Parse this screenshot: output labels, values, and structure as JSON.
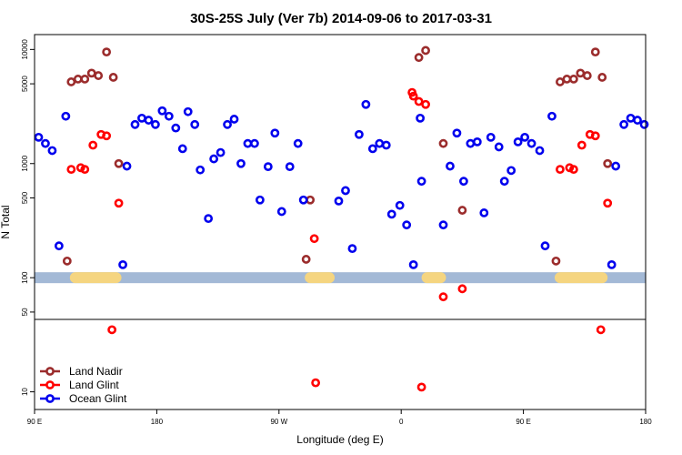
{
  "chart_data": {
    "type": "scatter",
    "title": "30S-25S July (Ver 7b)   2014-09-06 to 2017-03-31",
    "xlabel": "Longitude (deg E)",
    "ylabel": "N Total",
    "x_ticks": [
      {
        "value": 0,
        "label": "90 E"
      },
      {
        "value": 90,
        "label": "180"
      },
      {
        "value": 180,
        "label": "90 W"
      },
      {
        "value": 270,
        "label": "0"
      },
      {
        "value": 360,
        "label": "90 E"
      },
      {
        "value": 450,
        "label": "180"
      }
    ],
    "xlim": [
      0,
      450
    ],
    "y_scale": "log",
    "y_ticks": [
      {
        "value": 10,
        "label": "10"
      },
      {
        "value": 50,
        "label": "50"
      },
      {
        "value": 100,
        "label": "100"
      },
      {
        "value": 500,
        "label": "500"
      },
      {
        "value": 1000,
        "label": "1000"
      },
      {
        "value": 5000,
        "label": "5000"
      },
      {
        "value": 10000,
        "label": "10000"
      }
    ],
    "ylim": [
      7,
      13500
    ],
    "grid": false,
    "legend_position": "bottom-left",
    "reference_band": {
      "value": 100,
      "color": "#a3b9d6"
    },
    "land_segments": [
      {
        "x": [
          26,
          64
        ],
        "color": "#f5d580"
      },
      {
        "x": [
          199,
          221
        ],
        "color": "#f5d580"
      },
      {
        "x": [
          285,
          303
        ],
        "color": "#f5d580"
      },
      {
        "x": [
          383,
          422
        ],
        "color": "#f5d580"
      }
    ],
    "series": [
      {
        "name": "Land Nadir",
        "color": "#9b2c2c",
        "points": [
          [
            24,
            140
          ],
          [
            27,
            5200
          ],
          [
            32,
            5500
          ],
          [
            37,
            5500
          ],
          [
            42,
            6200
          ],
          [
            47,
            5900
          ],
          [
            53,
            9500
          ],
          [
            58,
            5700
          ],
          [
            62,
            1000
          ],
          [
            200,
            145
          ],
          [
            203,
            480
          ],
          [
            283,
            8500
          ],
          [
            288,
            9800
          ],
          [
            301,
            1500
          ],
          [
            315,
            390
          ],
          [
            384,
            140
          ],
          [
            387,
            5200
          ],
          [
            392,
            5500
          ],
          [
            397,
            5500
          ],
          [
            402,
            6200
          ],
          [
            407,
            5900
          ],
          [
            413,
            9500
          ],
          [
            418,
            5700
          ],
          [
            422,
            1000
          ]
        ]
      },
      {
        "name": "Land Glint",
        "color": "#ff0000",
        "points": [
          [
            27,
            890
          ],
          [
            34,
            920
          ],
          [
            37,
            890
          ],
          [
            43,
            1450
          ],
          [
            49,
            1800
          ],
          [
            53,
            1750
          ],
          [
            62,
            450
          ],
          [
            57,
            35
          ],
          [
            206,
            220
          ],
          [
            207,
            12
          ],
          [
            278,
            4200
          ],
          [
            279,
            3900
          ],
          [
            283,
            3500
          ],
          [
            288,
            3300
          ],
          [
            301,
            68
          ],
          [
            315,
            80
          ],
          [
            285,
            11
          ],
          [
            387,
            890
          ],
          [
            394,
            920
          ],
          [
            397,
            890
          ],
          [
            403,
            1450
          ],
          [
            409,
            1800
          ],
          [
            413,
            1750
          ],
          [
            422,
            450
          ],
          [
            417,
            35
          ]
        ]
      },
      {
        "name": "Ocean Glint",
        "color": "#0000ee",
        "points": [
          [
            3,
            1700
          ],
          [
            8,
            1500
          ],
          [
            13,
            1300
          ],
          [
            18,
            190
          ],
          [
            23,
            2600
          ],
          [
            65,
            130
          ],
          [
            68,
            950
          ],
          [
            74,
            2200
          ],
          [
            79,
            2500
          ],
          [
            84,
            2400
          ],
          [
            89,
            2200
          ],
          [
            94,
            2900
          ],
          [
            99,
            2600
          ],
          [
            104,
            2050
          ],
          [
            109,
            1350
          ],
          [
            113,
            2850
          ],
          [
            118,
            2200
          ],
          [
            122,
            880
          ],
          [
            128,
            330
          ],
          [
            132,
            1100
          ],
          [
            137,
            1250
          ],
          [
            142,
            2200
          ],
          [
            147,
            2450
          ],
          [
            152,
            1000
          ],
          [
            157,
            1500
          ],
          [
            162,
            1500
          ],
          [
            166,
            480
          ],
          [
            172,
            940
          ],
          [
            177,
            1850
          ],
          [
            182,
            380
          ],
          [
            188,
            940
          ],
          [
            194,
            1500
          ],
          [
            198,
            480
          ],
          [
            224,
            470
          ],
          [
            229,
            580
          ],
          [
            234,
            180
          ],
          [
            239,
            1800
          ],
          [
            244,
            3300
          ],
          [
            249,
            1350
          ],
          [
            254,
            1500
          ],
          [
            259,
            1450
          ],
          [
            263,
            360
          ],
          [
            269,
            430
          ],
          [
            274,
            290
          ],
          [
            279,
            130
          ],
          [
            284,
            2500
          ],
          [
            285,
            700
          ],
          [
            301,
            290
          ],
          [
            306,
            950
          ],
          [
            311,
            1850
          ],
          [
            316,
            700
          ],
          [
            321,
            1500
          ],
          [
            326,
            1550
          ],
          [
            331,
            370
          ],
          [
            336,
            1700
          ],
          [
            342,
            1400
          ],
          [
            346,
            700
          ],
          [
            351,
            870
          ],
          [
            356,
            1550
          ],
          [
            361,
            1700
          ],
          [
            366,
            1500
          ],
          [
            372,
            1300
          ],
          [
            376,
            190
          ],
          [
            381,
            2600
          ],
          [
            425,
            130
          ],
          [
            428,
            950
          ],
          [
            434,
            2200
          ],
          [
            439,
            2500
          ],
          [
            444,
            2400
          ],
          [
            449,
            2200
          ]
        ]
      }
    ]
  }
}
